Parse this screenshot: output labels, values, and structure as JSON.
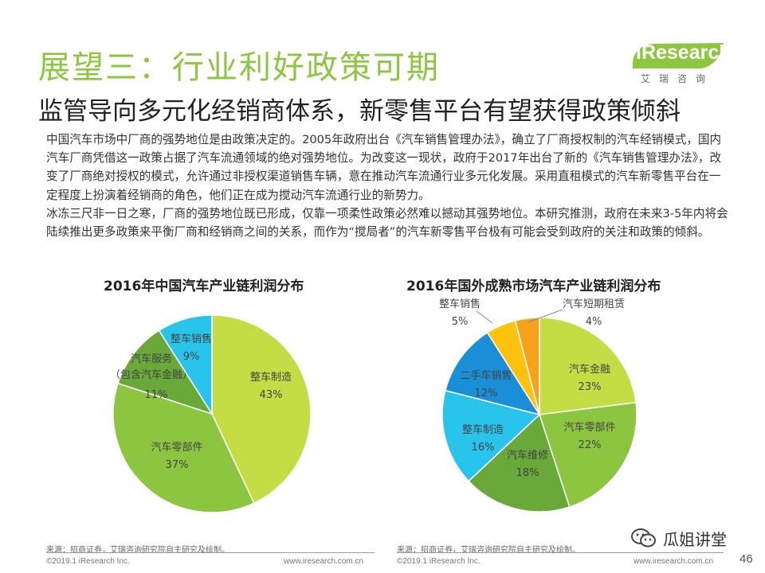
{
  "header": {
    "title": "展望三：行业利好政策可期",
    "subtitle": "监管导向多元化经销商体系，新零售平台有望获得政策倾斜"
  },
  "logo": {
    "brand": "iResearch",
    "sub": "艾瑞咨询"
  },
  "body": {
    "paragraph1": "中国汽车市场中厂商的强势地位是由政策决定的。2005年政府出台《汽车销售管理办法》，确立了厂商授权制的汽车经销模式，国内汽车厂商凭借这一政策占据了汽车流通领域的绝对强势地位。为改变这一现状，政府于2017年出台了新的《汽车销售管理办法》，改变了厂商绝对授权的模式，允许通过非授权渠道销售车辆，意在推动汽车流通行业多元化发展。采用直租模式的汽车新零售平台在一定程度上扮演着经销商的角色，他们正在成为搅动汽车流通行业的新势力。",
    "paragraph2": "冰冻三尺非一日之寒，厂商的强势地位既已形成，仅靠一项柔性政策必然难以撼动其强势地位。本研究推测，政府在未来3-5年内将会陆续推出更多政策来平衡厂商和经销商之间的关系，而作为“搅局者”的汽车新零售平台极有可能会受到政府的关注和政策的倾斜。"
  },
  "chart_data": [
    {
      "type": "pie",
      "title": "2016年中国汽车产业链利润分布",
      "slices": [
        {
          "label": "整车制造",
          "value": 43,
          "value_label": "43%",
          "color": "#c4dd45"
        },
        {
          "label": "汽车零部件",
          "value": 37,
          "value_label": "37%",
          "color": "#8cc640"
        },
        {
          "label": "汽车服务\n（包含汽车金融）",
          "value": 11,
          "value_label": "11%",
          "color": "#68a93a"
        },
        {
          "label": "整车销售",
          "value": 9,
          "value_label": "9%",
          "color": "#29c4ec"
        }
      ]
    },
    {
      "type": "pie",
      "title": "2016年国外成熟市场汽车产业链利润分布",
      "slices": [
        {
          "label": "汽车金融",
          "value": 23,
          "value_label": "23%",
          "color": "#c4dd45"
        },
        {
          "label": "汽车零部件",
          "value": 22,
          "value_label": "22%",
          "color": "#8cc640"
        },
        {
          "label": "汽车维修",
          "value": 18,
          "value_label": "18%",
          "color": "#68a93a"
        },
        {
          "label": "整车制造",
          "value": 16,
          "value_label": "16%",
          "color": "#29c4ec"
        },
        {
          "label": "二手车销售",
          "value": 12,
          "value_label": "12%",
          "color": "#1a8fd8"
        },
        {
          "label": "整车销售",
          "value": 5,
          "value_label": "5%",
          "color": "#ffc20e"
        },
        {
          "label": "汽车短期租赁",
          "value": 4,
          "value_label": "4%",
          "color": "#f7a21b"
        }
      ]
    }
  ],
  "footer": {
    "source_left": "来源：招商证券，艾瑞咨询研究院自主研究及绘制。",
    "source_right": "来源：招商证券，艾瑞咨询研究院自主研究及绘制。",
    "copyright": "©2019.1 iResearch Inc.",
    "website": "www.iresearch.com.cn",
    "page_number": "46",
    "watermark": "瓜姐讲堂"
  }
}
